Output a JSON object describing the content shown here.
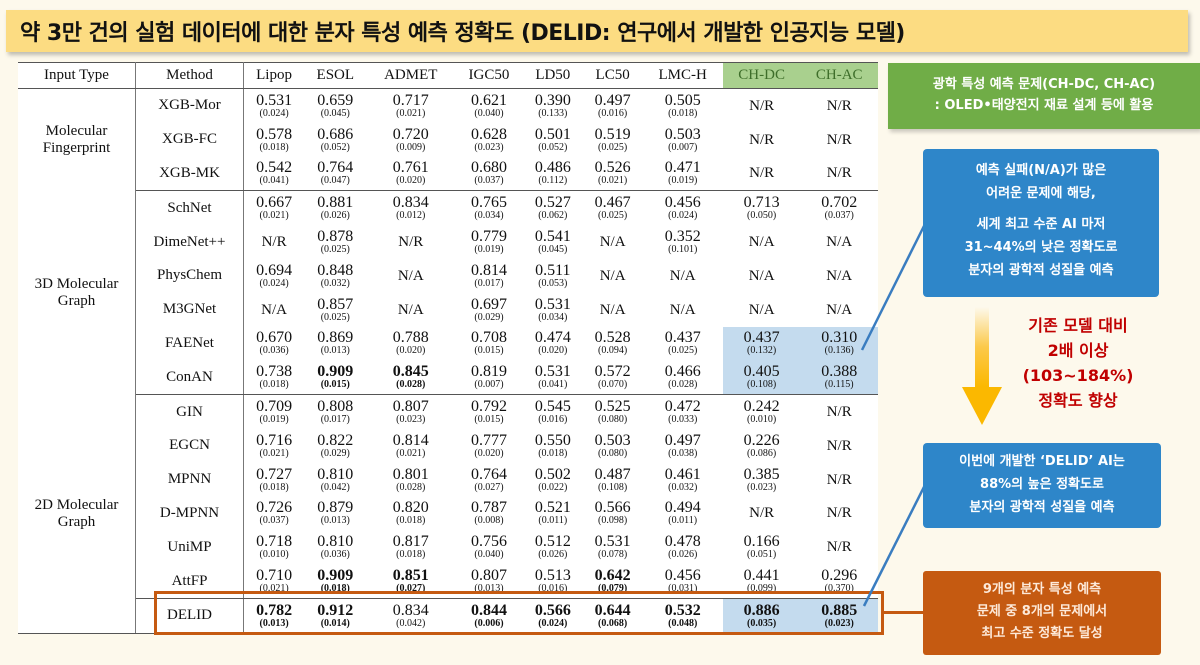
{
  "title": "약 3만 건의 실험 데이터에 대한 분자 특성 예측 정확도 (DELID: 연구에서 개발한 인공지능 모델)",
  "table": {
    "headers": [
      "Input Type",
      "Method",
      "Lipop",
      "ESOL",
      "ADMET",
      "IGC50",
      "LD50",
      "LC50",
      "LMC-H",
      "CH-DC",
      "CH-AC"
    ],
    "highlighted_headers": [
      "CH-DC",
      "CH-AC"
    ],
    "groups": [
      {
        "label_line1": "Molecular",
        "label_line2": "Fingerprint"
      },
      {
        "label_line1": "3D Molecular",
        "label_line2": "Graph"
      },
      {
        "label_line1": "2D Molecular",
        "label_line2": "Graph"
      }
    ],
    "rows": [
      {
        "method": "XGB-Mor",
        "cells": [
          [
            "0.531",
            "(0.024)"
          ],
          [
            "0.659",
            "(0.045)"
          ],
          [
            "0.717",
            "(0.021)"
          ],
          [
            "0.621",
            "(0.040)"
          ],
          [
            "0.390",
            "(0.133)"
          ],
          [
            "0.497",
            "(0.016)"
          ],
          [
            "0.505",
            "(0.018)"
          ],
          [
            "N/R",
            ""
          ],
          [
            "N/R",
            ""
          ]
        ]
      },
      {
        "method": "XGB-FC",
        "cells": [
          [
            "0.578",
            "(0.018)"
          ],
          [
            "0.686",
            "(0.052)"
          ],
          [
            "0.720",
            "(0.009)"
          ],
          [
            "0.628",
            "(0.023)"
          ],
          [
            "0.501",
            "(0.052)"
          ],
          [
            "0.519",
            "(0.025)"
          ],
          [
            "0.503",
            "(0.007)"
          ],
          [
            "N/R",
            ""
          ],
          [
            "N/R",
            ""
          ]
        ]
      },
      {
        "method": "XGB-MK",
        "cells": [
          [
            "0.542",
            "(0.041)"
          ],
          [
            "0.764",
            "(0.047)"
          ],
          [
            "0.761",
            "(0.020)"
          ],
          [
            "0.680",
            "(0.037)"
          ],
          [
            "0.486",
            "(0.112)"
          ],
          [
            "0.526",
            "(0.021)"
          ],
          [
            "0.471",
            "(0.019)"
          ],
          [
            "N/R",
            ""
          ],
          [
            "N/R",
            ""
          ]
        ]
      },
      {
        "method": "SchNet",
        "cells": [
          [
            "0.667",
            "(0.021)"
          ],
          [
            "0.881",
            "(0.026)"
          ],
          [
            "0.834",
            "(0.012)"
          ],
          [
            "0.765",
            "(0.034)"
          ],
          [
            "0.527",
            "(0.062)"
          ],
          [
            "0.467",
            "(0.025)"
          ],
          [
            "0.456",
            "(0.024)"
          ],
          [
            "0.713",
            "(0.050)"
          ],
          [
            "0.702",
            "(0.037)"
          ]
        ]
      },
      {
        "method": "DimeNet++",
        "cells": [
          [
            "N/R",
            ""
          ],
          [
            "0.878",
            "(0.025)"
          ],
          [
            "N/R",
            ""
          ],
          [
            "0.779",
            "(0.019)"
          ],
          [
            "0.541",
            "(0.045)"
          ],
          [
            "N/A",
            ""
          ],
          [
            "0.352",
            "(0.101)"
          ],
          [
            "N/A",
            ""
          ],
          [
            "N/A",
            ""
          ]
        ]
      },
      {
        "method": "PhysChem",
        "cells": [
          [
            "0.694",
            "(0.024)"
          ],
          [
            "0.848",
            "(0.032)"
          ],
          [
            "N/A",
            ""
          ],
          [
            "0.814",
            "(0.017)"
          ],
          [
            "0.511",
            "(0.053)"
          ],
          [
            "N/A",
            ""
          ],
          [
            "N/A",
            ""
          ],
          [
            "N/A",
            ""
          ],
          [
            "N/A",
            ""
          ]
        ]
      },
      {
        "method": "M3GNet",
        "cells": [
          [
            "N/A",
            ""
          ],
          [
            "0.857",
            "(0.025)"
          ],
          [
            "N/A",
            ""
          ],
          [
            "0.697",
            "(0.029)"
          ],
          [
            "0.531",
            "(0.034)"
          ],
          [
            "N/A",
            ""
          ],
          [
            "N/A",
            ""
          ],
          [
            "N/A",
            ""
          ],
          [
            "N/A",
            ""
          ]
        ]
      },
      {
        "method": "FAENet",
        "cells": [
          [
            "0.670",
            "(0.036)"
          ],
          [
            "0.869",
            "(0.013)"
          ],
          [
            "0.788",
            "(0.020)"
          ],
          [
            "0.708",
            "(0.015)"
          ],
          [
            "0.474",
            "(0.020)"
          ],
          [
            "0.528",
            "(0.094)"
          ],
          [
            "0.437",
            "(0.025)"
          ],
          [
            "0.437",
            "(0.132)"
          ],
          [
            "0.310",
            "(0.136)"
          ]
        ]
      },
      {
        "method": "ConAN",
        "cells": [
          [
            "0.738",
            "(0.018)"
          ],
          [
            "0.909",
            "(0.015)"
          ],
          [
            "0.845",
            "(0.028)"
          ],
          [
            "0.819",
            "(0.007)"
          ],
          [
            "0.531",
            "(0.041)"
          ],
          [
            "0.572",
            "(0.070)"
          ],
          [
            "0.466",
            "(0.028)"
          ],
          [
            "0.405",
            "(0.108)"
          ],
          [
            "0.388",
            "(0.115)"
          ]
        ]
      },
      {
        "method": "GIN",
        "cells": [
          [
            "0.709",
            "(0.019)"
          ],
          [
            "0.808",
            "(0.017)"
          ],
          [
            "0.807",
            "(0.023)"
          ],
          [
            "0.792",
            "(0.015)"
          ],
          [
            "0.545",
            "(0.016)"
          ],
          [
            "0.525",
            "(0.080)"
          ],
          [
            "0.472",
            "(0.033)"
          ],
          [
            "0.242",
            "(0.010)"
          ],
          [
            "N/R",
            ""
          ]
        ]
      },
      {
        "method": "EGCN",
        "cells": [
          [
            "0.716",
            "(0.021)"
          ],
          [
            "0.822",
            "(0.029)"
          ],
          [
            "0.814",
            "(0.021)"
          ],
          [
            "0.777",
            "(0.020)"
          ],
          [
            "0.550",
            "(0.018)"
          ],
          [
            "0.503",
            "(0.080)"
          ],
          [
            "0.497",
            "(0.038)"
          ],
          [
            "0.226",
            "(0.086)"
          ],
          [
            "N/R",
            ""
          ]
        ]
      },
      {
        "method": "MPNN",
        "cells": [
          [
            "0.727",
            "(0.018)"
          ],
          [
            "0.810",
            "(0.042)"
          ],
          [
            "0.801",
            "(0.028)"
          ],
          [
            "0.764",
            "(0.027)"
          ],
          [
            "0.502",
            "(0.022)"
          ],
          [
            "0.487",
            "(0.108)"
          ],
          [
            "0.461",
            "(0.032)"
          ],
          [
            "0.385",
            "(0.023)"
          ],
          [
            "N/R",
            ""
          ]
        ]
      },
      {
        "method": "D-MPNN",
        "cells": [
          [
            "0.726",
            "(0.037)"
          ],
          [
            "0.879",
            "(0.013)"
          ],
          [
            "0.820",
            "(0.018)"
          ],
          [
            "0.787",
            "(0.008)"
          ],
          [
            "0.521",
            "(0.011)"
          ],
          [
            "0.566",
            "(0.098)"
          ],
          [
            "0.494",
            "(0.011)"
          ],
          [
            "N/R",
            ""
          ],
          [
            "N/R",
            ""
          ]
        ]
      },
      {
        "method": "UniMP",
        "cells": [
          [
            "0.718",
            "(0.010)"
          ],
          [
            "0.810",
            "(0.036)"
          ],
          [
            "0.817",
            "(0.018)"
          ],
          [
            "0.756",
            "(0.040)"
          ],
          [
            "0.512",
            "(0.026)"
          ],
          [
            "0.531",
            "(0.078)"
          ],
          [
            "0.478",
            "(0.026)"
          ],
          [
            "0.166",
            "(0.051)"
          ],
          [
            "N/R",
            ""
          ]
        ]
      },
      {
        "method": "AttFP",
        "cells": [
          [
            "0.710",
            "(0.021)"
          ],
          [
            "0.909",
            "(0.018)"
          ],
          [
            "0.851",
            "(0.027)"
          ],
          [
            "0.807",
            "(0.013)"
          ],
          [
            "0.513",
            "(0.016)"
          ],
          [
            "0.642",
            "(0.079)"
          ],
          [
            "0.456",
            "(0.031)"
          ],
          [
            "0.441",
            "(0.099)"
          ],
          [
            "0.296",
            "(0.370)"
          ]
        ]
      },
      {
        "method": "DELID",
        "cells": [
          [
            "0.782",
            "(0.013)"
          ],
          [
            "0.912",
            "(0.014)"
          ],
          [
            "0.834",
            "(0.042)"
          ],
          [
            "0.844",
            "(0.006)"
          ],
          [
            "0.566",
            "(0.024)"
          ],
          [
            "0.644",
            "(0.068)"
          ],
          [
            "0.532",
            "(0.048)"
          ],
          [
            "0.886",
            "(0.035)"
          ],
          [
            "0.885",
            "(0.023)"
          ]
        ]
      }
    ]
  },
  "annotations": {
    "green_box": {
      "line1": "광학 특성 예측 문제(CH-DC, CH-AC)",
      "line2": ": OLED•태양전지 재료 설계 등에 활용"
    },
    "blue_box_1": {
      "line1": "예측 실패(N/A)가 많은",
      "line2": "어려운 문제에 해당,",
      "line3": "세계 최고 수준 AI 마저",
      "line4": "31~44%의 낮은 정확도로",
      "line5": "분자의 광학적 성질을 예측"
    },
    "red_text": {
      "line1": "기존 모델 대비",
      "line2": "2배 이상",
      "line3": "(103~184%)",
      "line4": "정확도 향상"
    },
    "blue_box_2": {
      "line1": "이번에 개발한 ‘DELID’ AI는",
      "line2": "88%의 높은 정확도로",
      "line3": "분자의 광학적 성질을 예측"
    },
    "orange_box": {
      "line1": "9개의 분자 특성 예측",
      "line2": "문제 중 8개의 문제에서",
      "line3": "최고 수준 정확도 달성"
    }
  },
  "colors": {
    "title_bg": "#fcdc82",
    "green": "#70ad47",
    "blue": "#2e86c9",
    "orange": "#c55a11",
    "red_text": "#c00000",
    "highlight_blue": "#c4dbee"
  }
}
